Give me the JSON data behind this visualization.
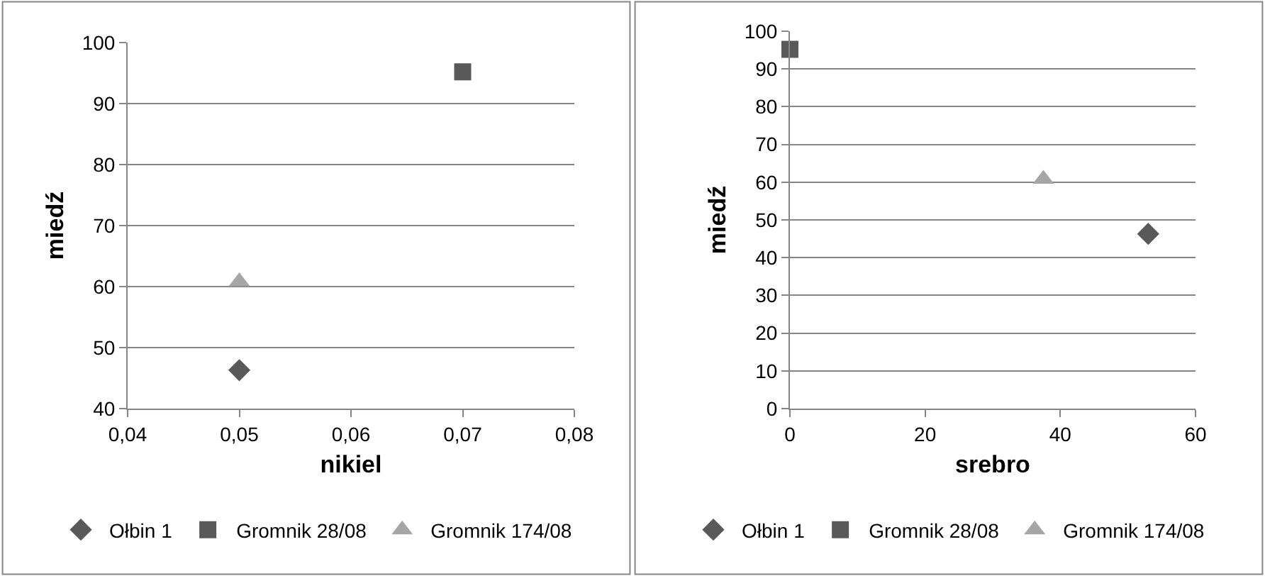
{
  "chart_data": [
    {
      "type": "scatter",
      "xlabel": "nikiel",
      "ylabel": "miedź",
      "xlim": [
        0.04,
        0.08
      ],
      "xticks": [
        {
          "value": 0.04,
          "label": "0,04"
        },
        {
          "value": 0.05,
          "label": "0,05"
        },
        {
          "value": 0.06,
          "label": "0,06"
        },
        {
          "value": 0.07,
          "label": "0,07"
        },
        {
          "value": 0.08,
          "label": "0,08"
        }
      ],
      "ylim": [
        40,
        100
      ],
      "yticks": [
        40,
        50,
        60,
        70,
        80,
        90,
        100
      ],
      "grid": "y",
      "legend": "bottom",
      "series": [
        {
          "name": "Ołbin 1",
          "color": "#595959",
          "marker": "diamond",
          "x": [
            0.05
          ],
          "values": [
            46.3
          ]
        },
        {
          "name": "Gromnik 28/08",
          "color": "#595959",
          "marker": "square",
          "x": [
            0.07
          ],
          "values": [
            95.2
          ]
        },
        {
          "name": "Gromnik 174/08",
          "color": "#a6a6a6",
          "marker": "triangle",
          "x": [
            0.05
          ],
          "values": [
            60.8
          ]
        }
      ]
    },
    {
      "type": "scatter",
      "xlabel": "srebro",
      "ylabel": "miedź",
      "xlim": [
        0,
        60
      ],
      "xticks": [
        0,
        20,
        40,
        60
      ],
      "ylim": [
        0,
        100
      ],
      "yticks": [
        0,
        10,
        20,
        30,
        40,
        50,
        60,
        70,
        80,
        90,
        100
      ],
      "grid": "y",
      "legend": "bottom",
      "series": [
        {
          "name": "Ołbin 1",
          "color": "#595959",
          "marker": "diamond",
          "x": [
            53
          ],
          "values": [
            46.3
          ]
        },
        {
          "name": "Gromnik 28/08",
          "color": "#595959",
          "marker": "square",
          "x": [
            0
          ],
          "values": [
            95.2
          ]
        },
        {
          "name": "Gromnik 174/08",
          "color": "#a6a6a6",
          "marker": "triangle",
          "x": [
            37.5
          ],
          "values": [
            60.8
          ]
        }
      ]
    }
  ]
}
